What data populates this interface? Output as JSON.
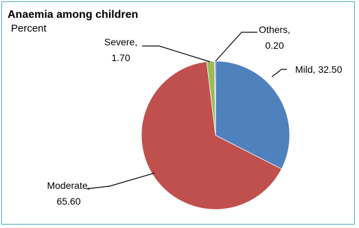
{
  "chart_data": {
    "type": "pie",
    "title": "Anaemia among children",
    "subtitle": "Percent",
    "slices": [
      {
        "name": "Mild",
        "value": 32.5,
        "value_label": "32.50",
        "color": "#4f81bd"
      },
      {
        "name": "Moderate",
        "value": 65.6,
        "value_label": "65.60",
        "color": "#c0504d"
      },
      {
        "name": "Severe",
        "value": 1.7,
        "value_label": "1.70",
        "color": "#9bbb59"
      },
      {
        "name": "Others",
        "value": 0.2,
        "value_label": "0.20",
        "color": "#8064a2"
      }
    ],
    "start_angle": "12 o'clock",
    "direction": "clockwise",
    "legend": "none",
    "labels": "outside with leader lines"
  }
}
